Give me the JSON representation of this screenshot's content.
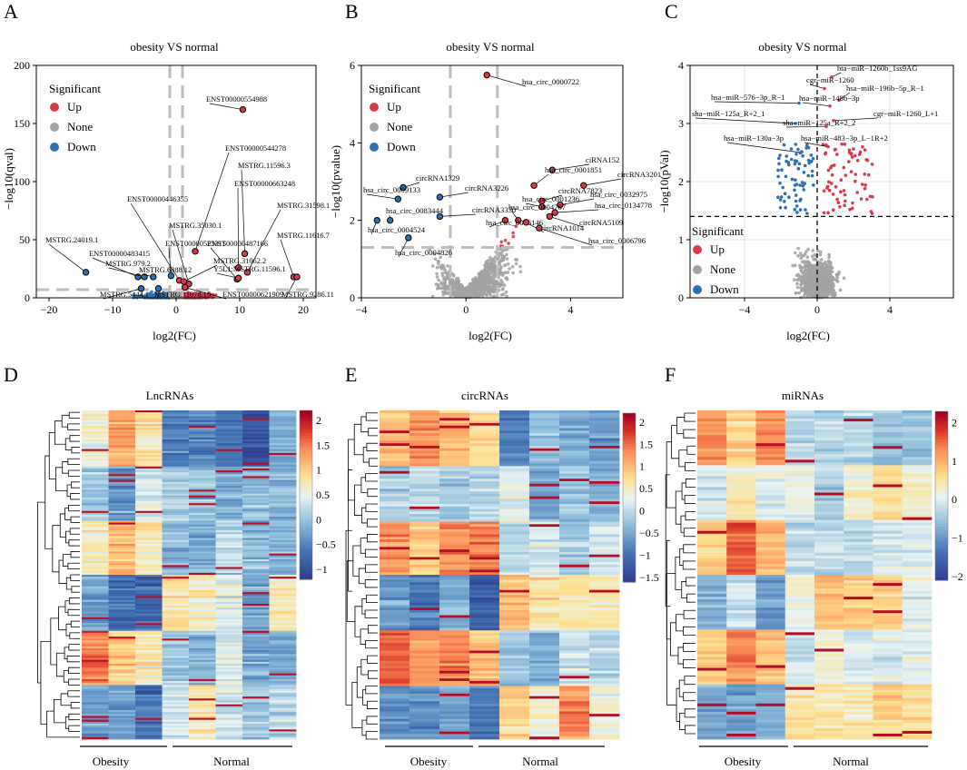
{
  "figure": {
    "panels": {
      "A": {
        "label": "A",
        "title": "obesity VS normal",
        "xlabel": "log2(FC)",
        "ylabel": "−log10(qval)"
      },
      "B": {
        "label": "B",
        "title": "obesity VS normal",
        "xlabel": "log2(FC)",
        "ylabel": "−log10(pvalue)"
      },
      "C": {
        "label": "C",
        "title": "obesity VS normal",
        "xlabel": "log2(FC)",
        "ylabel": "−log10(pVal)"
      },
      "D": {
        "label": "D",
        "title": "LncRNAs",
        "group1": "Obesity",
        "group2": "Normal"
      },
      "E": {
        "label": "E",
        "title": "circRNAs",
        "group1": "Obesity",
        "group2": "Normal"
      },
      "F": {
        "label": "F",
        "title": "miRNAs",
        "group1": "Obesity",
        "group2": "Normal"
      }
    },
    "legend": {
      "title": "Significant",
      "items": [
        "Up",
        "None",
        "Down"
      ]
    },
    "colors": {
      "up": "#d63b4a",
      "none": "#a3a3a3",
      "down": "#2e6fb0",
      "threshold": "#bdbdbd",
      "heat_low": "#2c3a8f",
      "heat_mid": "#e8f4f4",
      "heat_high": "#a50026"
    }
  },
  "chart_data": [
    {
      "panel": "A",
      "type": "scatter",
      "title": "obesity VS normal",
      "xlabel": "log2(FC)",
      "ylabel": "−log10(qval)",
      "xlim": [
        -22,
        22
      ],
      "ylim": [
        0,
        200
      ],
      "xticks": [
        -20,
        -10,
        0,
        10,
        20
      ],
      "yticks": [
        0,
        50,
        100,
        150,
        200
      ],
      "thresholds": {
        "x": [
          -1,
          1
        ],
        "y": [
          7
        ]
      },
      "labeled_points": [
        {
          "label": "ENST00000554988",
          "x": 10.5,
          "y": 162,
          "class": "up"
        },
        {
          "label": "ENST00000544278",
          "x": 3.0,
          "y": 40,
          "class": "up"
        },
        {
          "label": "MSTRG.11596.3",
          "x": 10.8,
          "y": 38,
          "class": "up"
        },
        {
          "label": "ENST00000663248",
          "x": 9.8,
          "y": 26,
          "class": "up"
        },
        {
          "label": "MSTRG.31598.1",
          "x": 11.2,
          "y": 22,
          "class": "up"
        },
        {
          "label": "ENST00000446355",
          "x": 0.5,
          "y": 15,
          "class": "up"
        },
        {
          "label": "MSTRG.35030.1",
          "x": 2.0,
          "y": 12,
          "class": "up"
        },
        {
          "label": "MSTRG.11616.7",
          "x": 18.5,
          "y": 18,
          "class": "up"
        },
        {
          "label": "MSTRG.24019.1",
          "x": -14.2,
          "y": 22,
          "class": "down"
        },
        {
          "label": "ENST00000483415",
          "x": -6.0,
          "y": 18,
          "class": "down"
        },
        {
          "label": "ENST00000525315",
          "x": -0.8,
          "y": 19,
          "class": "down"
        },
        {
          "label": "ENST00000487166",
          "x": 9.6,
          "y": 16,
          "class": "up"
        },
        {
          "label": "MSTRG.979.2",
          "x": -5.0,
          "y": 18,
          "class": "down"
        },
        {
          "label": "MSTRG.6888.12",
          "x": -3.6,
          "y": 18,
          "class": "down"
        },
        {
          "label": "MSTRG.31062.2",
          "x": 1.2,
          "y": 14,
          "class": "up"
        },
        {
          "label": "Y5L1:MSTRG.11596.1",
          "x": 9.8,
          "y": 17,
          "class": "up"
        },
        {
          "label": "MSTRG.5444.1",
          "x": -5.5,
          "y": 8,
          "class": "down"
        },
        {
          "label": "MSTRG.11078.15",
          "x": -2.8,
          "y": 8,
          "class": "down"
        },
        {
          "label": "ENST00000621909",
          "x": 1.4,
          "y": 9,
          "class": "up"
        },
        {
          "label": "MSTRG.9286.11",
          "x": 19.0,
          "y": 18,
          "class": "up"
        }
      ]
    },
    {
      "panel": "B",
      "type": "scatter",
      "title": "obesity VS normal",
      "xlabel": "log2(FC)",
      "ylabel": "−log10(pvalue)",
      "xlim": [
        -4,
        6
      ],
      "ylim": [
        0,
        6
      ],
      "xticks": [
        -4,
        0,
        4
      ],
      "yticks": [
        0,
        2,
        4,
        6
      ],
      "thresholds": {
        "x": [
          -0.6,
          1.2
        ],
        "y": [
          1.3
        ]
      },
      "labeled_points": [
        {
          "label": "hsa_circ_0000722",
          "x": 0.8,
          "y": 5.75,
          "class": "up"
        },
        {
          "label": "ciRNA152",
          "x": 3.3,
          "y": 3.3,
          "class": "up"
        },
        {
          "label": "circRNA3201",
          "x": 4.5,
          "y": 2.9,
          "class": "up"
        },
        {
          "label": "hsa_circ_0001851",
          "x": 2.6,
          "y": 2.9,
          "class": "up"
        },
        {
          "label": "circRNA1329",
          "x": -2.4,
          "y": 2.85,
          "class": "down"
        },
        {
          "label": "circRNA3226",
          "x": -1.0,
          "y": 2.6,
          "class": "down"
        },
        {
          "label": "hsa_circ_0009133",
          "x": -2.6,
          "y": 2.55,
          "class": "down"
        },
        {
          "label": "circRNA7823",
          "x": 2.9,
          "y": 2.5,
          "class": "up"
        },
        {
          "label": "hsa_circ_0032975",
          "x": 3.6,
          "y": 2.4,
          "class": "up"
        },
        {
          "label": "hsa_circ_0001236",
          "x": 2.9,
          "y": 2.35,
          "class": "up"
        },
        {
          "label": "circRNA3330",
          "x": -1.0,
          "y": 2.1,
          "class": "down"
        },
        {
          "label": "hsa_circ_0134778",
          "x": 3.4,
          "y": 2.2,
          "class": "up"
        },
        {
          "label": "hsa_circ_0083444",
          "x": -2.9,
          "y": 2.0,
          "class": "down"
        },
        {
          "label": "hsa_circ_0004767",
          "x": 2.0,
          "y": 2.0,
          "class": "up"
        },
        {
          "label": "hsa_circ_0006146",
          "x": 1.5,
          "y": 2.0,
          "class": "up"
        },
        {
          "label": "circRNA5109",
          "x": 3.2,
          "y": 2.1,
          "class": "up"
        },
        {
          "label": "hsa_circ_0004524",
          "x": -3.4,
          "y": 2.0,
          "class": "down"
        },
        {
          "label": "circRNA1014",
          "x": 2.3,
          "y": 1.95,
          "class": "up"
        },
        {
          "label": "hsa_circ_0006796",
          "x": 2.8,
          "y": 1.8,
          "class": "up"
        },
        {
          "label": "hsa_circ_0004826",
          "x": -2.2,
          "y": 1.55,
          "class": "down"
        }
      ]
    },
    {
      "panel": "C",
      "type": "scatter",
      "title": "obesity VS normal",
      "xlabel": "log2(FC)",
      "ylabel": "−log10(pVal)",
      "xlim": [
        -7,
        7.5
      ],
      "ylim": [
        0,
        4
      ],
      "xticks": [
        -4,
        0,
        4
      ],
      "yticks": [
        0,
        1,
        2,
        3,
        4
      ],
      "thresholds": {
        "x": [
          0
        ],
        "y": [
          1.4
        ]
      },
      "labeled_points": [
        {
          "label": "bta−miR−1260b_1ss9AG",
          "x": 0.8,
          "y": 3.8,
          "class": "up"
        },
        {
          "label": "cgr−miR−1260",
          "x": 0.4,
          "y": 3.6,
          "class": "up"
        },
        {
          "label": "hsa−miR−196b−5p_R−1",
          "x": 1.2,
          "y": 3.4,
          "class": "up"
        },
        {
          "label": "hsa−miR−576−3p_R−1",
          "x": -1.0,
          "y": 3.35,
          "class": "down"
        },
        {
          "label": "hsa−miR−148b−3p",
          "x": 0.7,
          "y": 3.3,
          "class": "up"
        },
        {
          "label": "sha−miR−125a_R+2_1",
          "x": -1.2,
          "y": 3.0,
          "class": "down"
        },
        {
          "label": "cgr−miR−1260_L+1",
          "x": 0.9,
          "y": 3.05,
          "class": "up"
        },
        {
          "label": "sha−miR−125a_R+2_2",
          "x": 0.5,
          "y": 2.95,
          "class": "up"
        },
        {
          "label": "hsa−miR−130a−3p",
          "x": -0.9,
          "y": 2.5,
          "class": "down"
        },
        {
          "label": "hsa−miR−483−3p_L−1R+2",
          "x": 0.6,
          "y": 2.6,
          "class": "up"
        }
      ]
    },
    {
      "panel": "D",
      "type": "heatmap",
      "title": "LncRNAs",
      "columns": 8,
      "groups": [
        {
          "name": "Obesity",
          "columns": 3
        },
        {
          "name": "Normal",
          "columns": 5
        }
      ],
      "color_range": [
        -1.2,
        2.2
      ],
      "colorbar_ticks": [
        2,
        1.5,
        1,
        0.5,
        0,
        -0.5,
        -1
      ],
      "colorbar_labels": [
        "2",
        "1.5",
        "1",
        "0.5",
        "0",
        "−0.5",
        "−1"
      ]
    },
    {
      "panel": "E",
      "type": "heatmap",
      "title": "circRNAs",
      "columns": 8,
      "groups": [
        {
          "name": "Obesity",
          "columns": 4
        },
        {
          "name": "Normal",
          "columns": 4
        }
      ],
      "color_range": [
        -1.6,
        2.2
      ],
      "colorbar_ticks": [
        2,
        1.5,
        1,
        0.5,
        0,
        -0.5,
        -1,
        -1.5
      ],
      "colorbar_labels": [
        "2",
        "1.5",
        "1",
        "0.5",
        "0",
        "−0.5",
        "−1",
        "−1.5"
      ]
    },
    {
      "panel": "F",
      "type": "heatmap",
      "title": "miRNAs",
      "columns": 8,
      "groups": [
        {
          "name": "Obesity",
          "columns": 3
        },
        {
          "name": "Normal",
          "columns": 5
        }
      ],
      "color_range": [
        -2.1,
        2.3
      ],
      "colorbar_ticks": [
        2,
        1,
        0,
        -1,
        -2
      ],
      "colorbar_labels": [
        "2",
        "1",
        "0",
        "−1",
        "−2"
      ]
    }
  ]
}
